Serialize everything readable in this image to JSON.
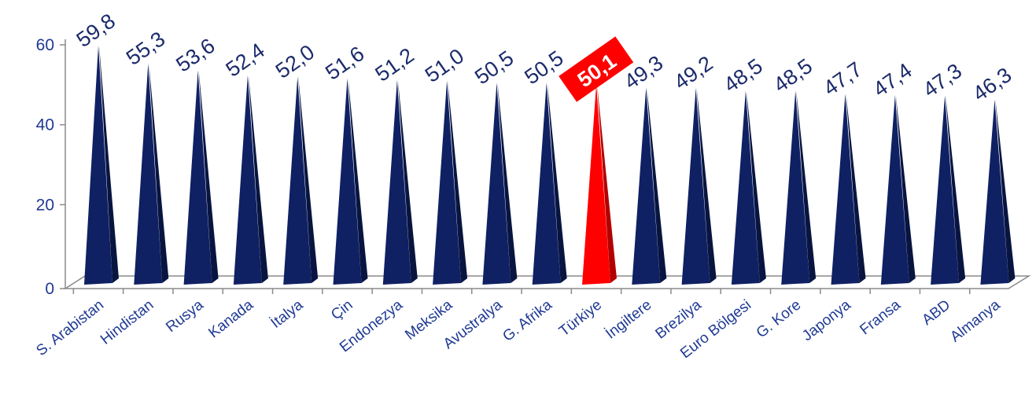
{
  "chart_data": {
    "type": "bar",
    "bar_shape": "cone",
    "categories": [
      "S. Arabistan",
      "Hindistan",
      "Rusya",
      "Kanada",
      "İtalya",
      "Çin",
      "Endonezya",
      "Meksika",
      "Avustralya",
      "G. Afrika",
      "Türkiye",
      "İngiltere",
      "Brezilya",
      "Euro Bölgesi",
      "G. Kore",
      "Japonya",
      "Fransa",
      "ABD",
      "Almanya"
    ],
    "values": [
      59.8,
      55.3,
      53.6,
      52.4,
      52.0,
      51.6,
      51.2,
      51.0,
      50.5,
      50.5,
      50.1,
      49.3,
      49.2,
      48.5,
      48.5,
      47.7,
      47.4,
      47.3,
      46.3
    ],
    "value_labels": [
      "59,8",
      "55,3",
      "53,6",
      "52,4",
      "52,0",
      "51,6",
      "51,2",
      "51,0",
      "50,5",
      "50,5",
      "50,1",
      "49,3",
      "49,2",
      "48,5",
      "48,5",
      "47,7",
      "47,4",
      "47,3",
      "46,3"
    ],
    "highlight_index": 10,
    "yticks": [
      "0",
      "20",
      "40",
      "60"
    ],
    "ylim": [
      0,
      60
    ],
    "title": "",
    "xlabel": "",
    "ylabel": "",
    "grid": false,
    "legend": "none",
    "colors": {
      "bar": "#0f2163",
      "bar_side": "#081540",
      "highlight": "#ff0000",
      "highlight_side": "#b30000",
      "axis": "#8a8a8a",
      "text": "#1f3a93"
    }
  }
}
